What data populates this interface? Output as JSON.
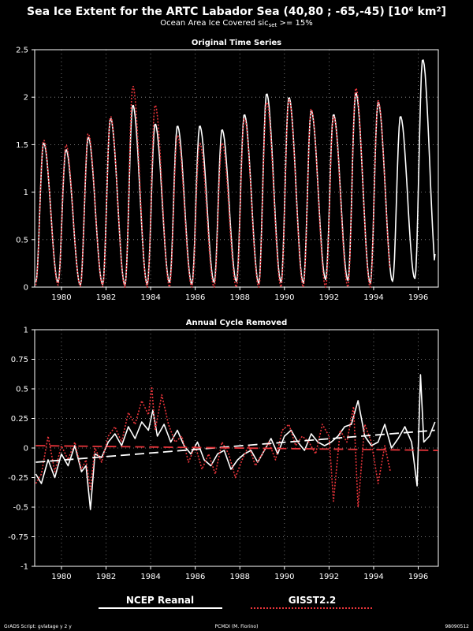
{
  "header": {
    "title": "Sea Ice Extent for the ARTC Labador Sea (40,80 ; -65,-45) [10⁶ km²]",
    "subtitle": "Ocean Area Ice Covered sic",
    "subtitle_sub": "set",
    "subtitle_tail": " >= 15%"
  },
  "legend": {
    "ncep_label": "NCEP Reanal",
    "gisst_label": "GISST2.2",
    "ncep_color": "#ffffff",
    "gisst_color": "#e8343a"
  },
  "footer": {
    "left": "GrADS Script: gvlatage y 2 y",
    "center": "PCMDI (M. Fiorino)",
    "right": "98090512"
  },
  "chart_data": [
    {
      "type": "line",
      "title": "Original Time Series",
      "xlim": [
        1978.8,
        1996.9
      ],
      "ylim": [
        0,
        2.5
      ],
      "x_ticks": [
        1980,
        1982,
        1984,
        1986,
        1988,
        1990,
        1992,
        1994,
        1996
      ],
      "y_ticks": [
        0,
        0.5,
        1,
        1.5,
        2,
        2.5
      ],
      "y_tick_labels": [
        "0",
        "0.5",
        "1",
        "1.5",
        "2",
        "2.5"
      ],
      "grid": true,
      "series": [
        {
          "name": "NCEP Reanal",
          "color": "#ffffff",
          "style": "solid",
          "peaks": [
            1.52,
            1.45,
            1.58,
            1.78,
            1.92,
            1.72,
            1.7,
            1.7,
            1.66,
            1.82,
            2.04,
            2.0,
            1.86,
            1.82,
            2.05,
            1.95,
            1.8,
            2.4
          ],
          "troughs": [
            0.05,
            0.02,
            0.03,
            0.02,
            0.03,
            0.05,
            0.03,
            0.05,
            0.06,
            0.04,
            0.05,
            0.04,
            0.08,
            0.07,
            0.04,
            0.06,
            0.09,
            0.08
          ],
          "x_start": 1978.85,
          "x_end": 1996.75,
          "end_value": 0.35
        },
        {
          "name": "GISST2.2",
          "color": "#e8343a",
          "style": "dotted",
          "peaks": [
            1.55,
            1.5,
            1.62,
            1.8,
            2.12,
            1.92,
            1.6,
            1.52,
            1.52,
            1.78,
            1.95,
            1.98,
            1.88,
            1.8,
            2.1,
            1.97
          ],
          "troughs": [
            0.02,
            0.01,
            0.01,
            0.0,
            0.0,
            0.0,
            0.0,
            0.0,
            0.0,
            0.0,
            0.0,
            0.0,
            0.0,
            0.0,
            0.0,
            0.02
          ],
          "x_start": 1978.85,
          "x_end": 1994.75
        }
      ]
    },
    {
      "type": "line",
      "title": "Annual Cycle Removed",
      "xlim": [
        1978.8,
        1996.9
      ],
      "ylim": [
        -1,
        1
      ],
      "x_ticks": [
        1980,
        1982,
        1984,
        1986,
        1988,
        1990,
        1992,
        1994,
        1996
      ],
      "y_ticks": [
        -1,
        -0.75,
        -0.5,
        -0.25,
        0,
        0.25,
        0.5,
        0.75,
        1
      ],
      "y_tick_labels": [
        "-1",
        "-0.75",
        "-0.5",
        "-0.25",
        "0",
        "0.25",
        "0.5",
        "0.75",
        "1"
      ],
      "grid": true,
      "series": [
        {
          "name": "NCEP Reanal",
          "color": "#ffffff",
          "style": "solid",
          "x": [
            1978.85,
            1979.1,
            1979.4,
            1979.7,
            1980.0,
            1980.3,
            1980.6,
            1980.9,
            1981.1,
            1981.3,
            1981.5,
            1981.8,
            1982.1,
            1982.4,
            1982.7,
            1983.0,
            1983.3,
            1983.6,
            1983.9,
            1984.1,
            1984.3,
            1984.6,
            1984.9,
            1985.2,
            1985.5,
            1985.8,
            1986.1,
            1986.4,
            1986.7,
            1987.0,
            1987.3,
            1987.6,
            1987.9,
            1988.2,
            1988.5,
            1988.8,
            1989.1,
            1989.4,
            1989.7,
            1990.0,
            1990.3,
            1990.6,
            1990.9,
            1991.2,
            1991.5,
            1991.8,
            1992.1,
            1992.4,
            1992.7,
            1993.0,
            1993.3,
            1993.6,
            1993.9,
            1994.2,
            1994.5,
            1994.8,
            1995.1,
            1995.4,
            1995.7,
            1995.95,
            1996.1,
            1996.25,
            1996.5,
            1996.75
          ],
          "y": [
            -0.22,
            -0.3,
            -0.1,
            -0.25,
            -0.05,
            -0.15,
            0.02,
            -0.2,
            -0.15,
            -0.52,
            -0.05,
            -0.08,
            0.05,
            0.12,
            0.02,
            0.18,
            0.08,
            0.22,
            0.15,
            0.32,
            0.1,
            0.2,
            0.05,
            0.15,
            0.02,
            -0.05,
            0.05,
            -0.1,
            -0.15,
            -0.05,
            -0.02,
            -0.18,
            -0.1,
            -0.05,
            -0.02,
            -0.12,
            -0.02,
            0.08,
            -0.05,
            0.1,
            0.15,
            0.05,
            -0.02,
            0.12,
            0.05,
            0.02,
            0.05,
            0.1,
            0.18,
            0.2,
            0.4,
            0.1,
            0.02,
            0.05,
            0.2,
            0.0,
            0.08,
            0.18,
            0.05,
            -0.32,
            0.62,
            0.05,
            0.1,
            0.22
          ]
        },
        {
          "name": "GISST2.2",
          "color": "#e8343a",
          "style": "dotted",
          "x": [
            1978.85,
            1979.1,
            1979.4,
            1979.7,
            1980.0,
            1980.3,
            1980.6,
            1980.9,
            1981.1,
            1981.3,
            1981.5,
            1981.8,
            1982.1,
            1982.4,
            1982.7,
            1983.0,
            1983.3,
            1983.6,
            1983.9,
            1984.05,
            1984.2,
            1984.5,
            1984.8,
            1985.1,
            1985.4,
            1985.7,
            1986.0,
            1986.3,
            1986.6,
            1986.9,
            1987.2,
            1987.5,
            1987.8,
            1988.1,
            1988.4,
            1988.7,
            1989.0,
            1989.3,
            1989.6,
            1989.9,
            1990.2,
            1990.5,
            1990.8,
            1991.1,
            1991.4,
            1991.7,
            1992.0,
            1992.2,
            1992.5,
            1992.8,
            1993.1,
            1993.3,
            1993.6,
            1993.9,
            1994.2,
            1994.5,
            1994.75
          ],
          "y": [
            -0.3,
            -0.22,
            0.1,
            -0.2,
            0.02,
            -0.1,
            0.05,
            -0.18,
            -0.1,
            -0.35,
            0.0,
            -0.12,
            0.1,
            0.18,
            0.05,
            0.3,
            0.2,
            0.4,
            0.28,
            0.52,
            0.15,
            0.45,
            0.2,
            0.05,
            0.1,
            -0.12,
            0.02,
            -0.18,
            -0.05,
            -0.22,
            0.05,
            -0.05,
            -0.25,
            -0.1,
            0.02,
            -0.15,
            -0.05,
            0.05,
            -0.1,
            0.15,
            0.2,
            0.02,
            0.1,
            0.05,
            -0.05,
            0.2,
            0.1,
            -0.45,
            0.15,
            0.05,
            0.35,
            -0.5,
            0.2,
            0.05,
            -0.3,
            0.02,
            -0.2
          ]
        },
        {
          "name": "NCEP trend",
          "color": "#ffffff",
          "style": "dashed",
          "x": [
            1978.85,
            1996.75
          ],
          "y": [
            -0.12,
            0.15
          ]
        },
        {
          "name": "GISST trend",
          "color": "#e8343a",
          "style": "dashed",
          "x": [
            1978.85,
            1996.9
          ],
          "y": [
            0.02,
            -0.02
          ]
        }
      ]
    }
  ]
}
